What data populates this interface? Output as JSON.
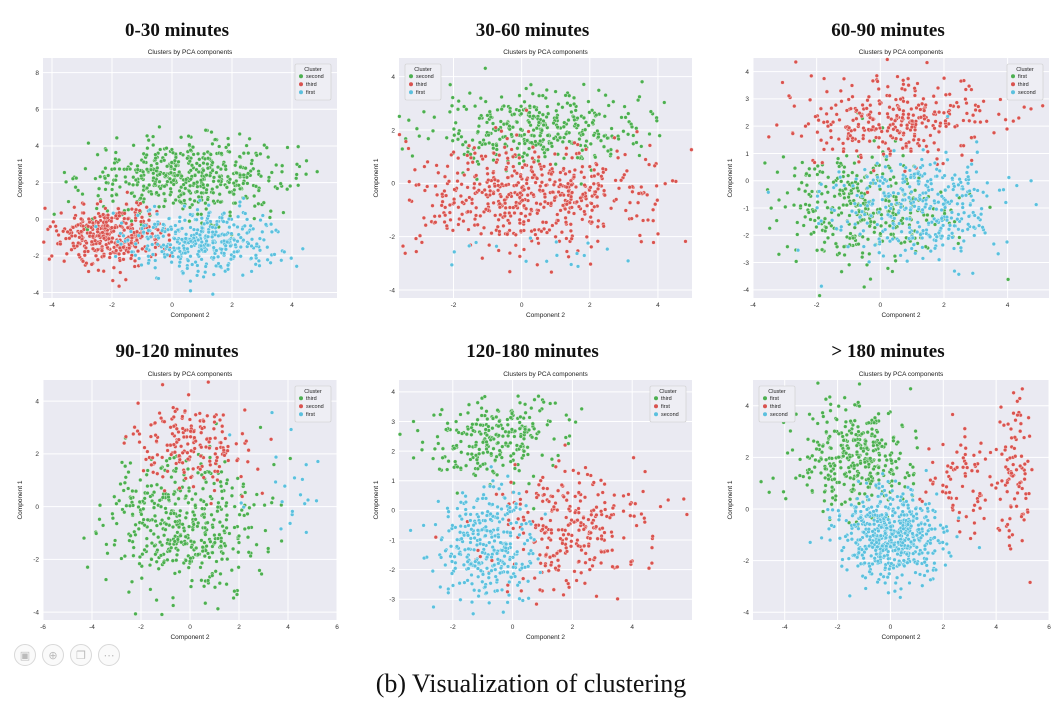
{
  "figure": {
    "caption": "(b) Visualization of clustering"
  },
  "colors": {
    "second": "#4caf50",
    "third": "#d9534f",
    "first": "#5bc0de",
    "plot_bg": "#eaeaf2",
    "grid": "#ffffff"
  },
  "toolbar": {
    "icons": [
      "image-icon",
      "zoom-icon",
      "copy-icon",
      "more-icon"
    ],
    "glyphs": [
      "▣",
      "⊕",
      "❐",
      "⋯"
    ]
  },
  "chart_data": [
    {
      "type": "scatter",
      "panel_title": "0-30 minutes",
      "title": "Clusters by PCA components",
      "xlabel": "Component 2",
      "ylabel": "Component 1",
      "xlim": [
        -4.3,
        5.5
      ],
      "ylim": [
        -4.3,
        8.8
      ],
      "xticks": [
        -4,
        -2,
        0,
        2,
        4
      ],
      "yticks": [
        -4,
        -2,
        0,
        2,
        4,
        6,
        8
      ],
      "grid": true,
      "legend": {
        "title": "Cluster",
        "position": "top-right",
        "entries": [
          "second",
          "third",
          "first"
        ]
      },
      "series": [
        {
          "name": "second",
          "color": "#4caf50",
          "count": 500,
          "clusters": [
            {
              "cx": 0.5,
              "cy": 2.3,
              "sx": 1.7,
              "sy": 1.0
            }
          ]
        },
        {
          "name": "third",
          "color": "#d9534f",
          "count": 380,
          "clusters": [
            {
              "cx": -2.0,
              "cy": -0.8,
              "sx": 0.9,
              "sy": 0.85
            }
          ]
        },
        {
          "name": "first",
          "color": "#5bc0de",
          "count": 380,
          "clusters": [
            {
              "cx": 1.0,
              "cy": -1.2,
              "sx": 1.3,
              "sy": 0.9
            }
          ]
        }
      ]
    },
    {
      "type": "scatter",
      "panel_title": "30-60 minutes",
      "title": "Clusters by PCA components",
      "xlabel": "Component 2",
      "ylabel": "Component 1",
      "xlim": [
        -3.6,
        5.0
      ],
      "ylim": [
        -4.3,
        4.7
      ],
      "xticks": [
        -2,
        0,
        2,
        4
      ],
      "yticks": [
        -4,
        -2,
        0,
        2,
        4
      ],
      "grid": true,
      "legend": {
        "title": "Cluster",
        "position": "top-left",
        "entries": [
          "second",
          "third",
          "first"
        ]
      },
      "series": [
        {
          "name": "second",
          "color": "#4caf50",
          "count": 380,
          "clusters": [
            {
              "cx": 0.5,
              "cy": 2.1,
              "sx": 1.5,
              "sy": 0.7
            }
          ]
        },
        {
          "name": "third",
          "color": "#d9534f",
          "count": 560,
          "clusters": [
            {
              "cx": 0.3,
              "cy": -0.5,
              "sx": 1.8,
              "sy": 1.0
            }
          ]
        },
        {
          "name": "first",
          "color": "#5bc0de",
          "count": 18,
          "clusters": [
            {
              "cx": 0.5,
              "cy": -2.6,
              "sx": 1.5,
              "sy": 0.3
            }
          ]
        }
      ]
    },
    {
      "type": "scatter",
      "panel_title": "60-90 minutes",
      "title": "Clusters by PCA components",
      "xlabel": "Component 2",
      "ylabel": "Component 1",
      "xlim": [
        -4.0,
        5.3
      ],
      "ylim": [
        -4.3,
        4.5
      ],
      "xticks": [
        -4,
        -2,
        0,
        2,
        4
      ],
      "yticks": [
        -4,
        -3,
        -2,
        -1,
        0,
        1,
        2,
        3,
        4
      ],
      "grid": true,
      "legend": {
        "title": "Cluster",
        "position": "top-right",
        "entries": [
          "first",
          "third",
          "second"
        ]
      },
      "series": [
        {
          "name": "first",
          "color": "#4caf50",
          "count": 360,
          "clusters": [
            {
              "cx": -0.5,
              "cy": -1.0,
              "sx": 1.4,
              "sy": 1.1
            }
          ]
        },
        {
          "name": "third",
          "color": "#d9534f",
          "count": 320,
          "clusters": [
            {
              "cx": 0.5,
              "cy": 2.2,
              "sx": 1.6,
              "sy": 0.8
            }
          ]
        },
        {
          "name": "second",
          "color": "#5bc0de",
          "count": 360,
          "clusters": [
            {
              "cx": 1.2,
              "cy": -1.0,
              "sx": 1.4,
              "sy": 1.0
            }
          ]
        }
      ]
    },
    {
      "type": "scatter",
      "panel_title": "90-120 minutes",
      "title": "Clusters by PCA components",
      "xlabel": "Component 2",
      "ylabel": "Component 1",
      "xlim": [
        -6.0,
        6.0
      ],
      "ylim": [
        -4.3,
        4.8
      ],
      "xticks": [
        -6,
        -4,
        -2,
        0,
        2,
        4,
        6
      ],
      "yticks": [
        -4,
        -2,
        0,
        2,
        4
      ],
      "grid": true,
      "legend": {
        "title": "Cluster",
        "position": "top-right",
        "entries": [
          "third",
          "second",
          "first"
        ]
      },
      "series": [
        {
          "name": "third",
          "color": "#4caf50",
          "count": 460,
          "clusters": [
            {
              "cx": -0.3,
              "cy": -0.6,
              "sx": 1.5,
              "sy": 1.3
            }
          ]
        },
        {
          "name": "second",
          "color": "#d9534f",
          "count": 190,
          "clusters": [
            {
              "cx": 0.0,
              "cy": 2.4,
              "sx": 1.2,
              "sy": 0.8
            }
          ]
        },
        {
          "name": "first",
          "color": "#5bc0de",
          "count": 22,
          "clusters": [
            {
              "cx": 3.8,
              "cy": 1.0,
              "sx": 0.9,
              "sy": 1.5
            }
          ]
        }
      ]
    },
    {
      "type": "scatter",
      "panel_title": "120-180 minutes",
      "title": "Clusters by PCA components",
      "xlabel": "Component 2",
      "ylabel": "Component 1",
      "xlim": [
        -3.8,
        6.0
      ],
      "ylim": [
        -3.7,
        4.4
      ],
      "xticks": [
        -2,
        0,
        2,
        4
      ],
      "yticks": [
        -3,
        -2,
        -1,
        0,
        1,
        2,
        3,
        4
      ],
      "grid": true,
      "legend": {
        "title": "Cluster",
        "position": "top-right",
        "entries": [
          "third",
          "first",
          "second"
        ]
      },
      "series": [
        {
          "name": "third",
          "color": "#4caf50",
          "count": 260,
          "clusters": [
            {
              "cx": -0.6,
              "cy": 2.4,
              "sx": 1.1,
              "sy": 0.7
            }
          ]
        },
        {
          "name": "first",
          "color": "#d9534f",
          "count": 280,
          "clusters": [
            {
              "cx": 2.0,
              "cy": -0.5,
              "sx": 1.3,
              "sy": 1.1
            }
          ]
        },
        {
          "name": "second",
          "color": "#5bc0de",
          "count": 320,
          "clusters": [
            {
              "cx": -0.9,
              "cy": -1.2,
              "sx": 0.85,
              "sy": 0.95
            }
          ]
        }
      ]
    },
    {
      "type": "scatter",
      "panel_title": "> 180 minutes",
      "title": "Clusters by PCA components",
      "xlabel": "Component 2",
      "ylabel": "Component 1",
      "xlim": [
        -5.2,
        6.0
      ],
      "ylim": [
        -4.3,
        5.0
      ],
      "xticks": [
        -4,
        -2,
        0,
        2,
        4,
        6
      ],
      "yticks": [
        -4,
        -2,
        0,
        2,
        4
      ],
      "grid": true,
      "legend": {
        "title": "Cluster",
        "position": "top-left",
        "entries": [
          "first",
          "third",
          "second"
        ]
      },
      "series": [
        {
          "name": "first",
          "color": "#4caf50",
          "count": 360,
          "clusters": [
            {
              "cx": -1.3,
              "cy": 2.0,
              "sx": 1.1,
              "sy": 1.0
            }
          ]
        },
        {
          "name": "third",
          "color": "#d9534f",
          "count": 170,
          "clusters": [
            {
              "cx": 4.7,
              "cy": 1.5,
              "sx": 0.35,
              "sy": 1.6
            },
            {
              "cx": 3.0,
              "cy": 1.0,
              "sx": 0.8,
              "sy": 1.2
            }
          ]
        },
        {
          "name": "second",
          "color": "#5bc0de",
          "count": 560,
          "clusters": [
            {
              "cx": 0.0,
              "cy": -1.1,
              "sx": 0.9,
              "sy": 0.9
            }
          ]
        }
      ]
    }
  ]
}
